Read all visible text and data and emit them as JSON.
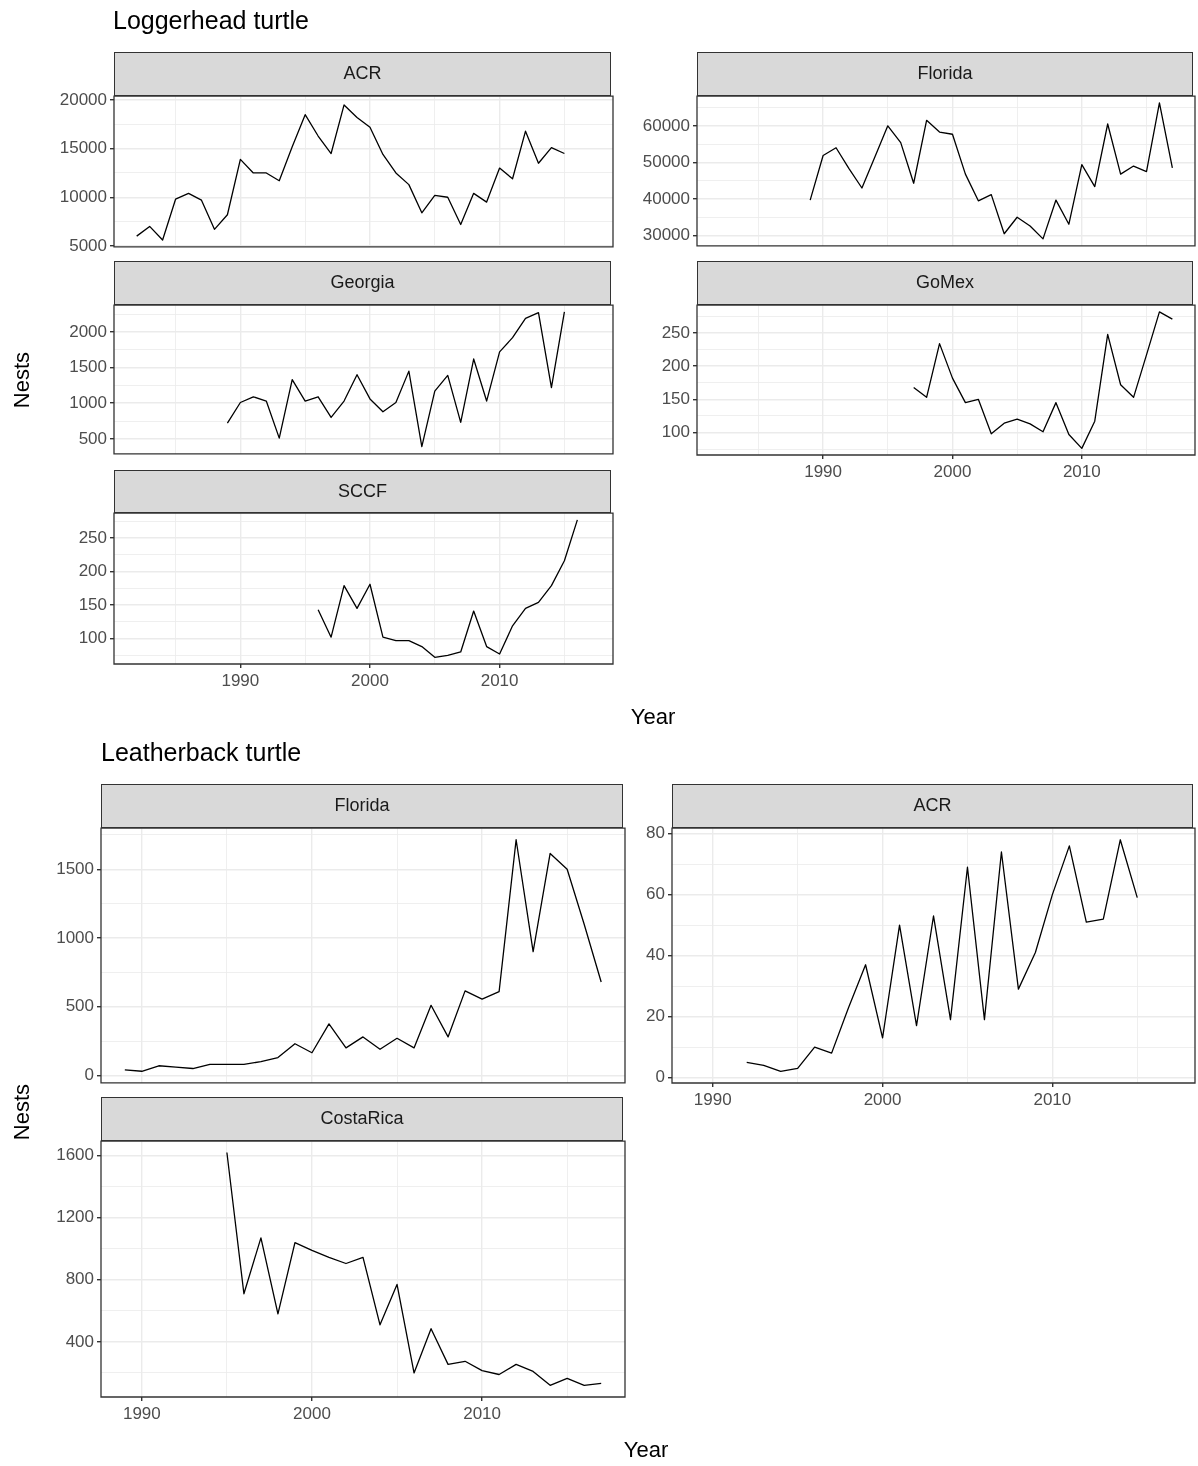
{
  "chart_data": [
    {
      "type": "line",
      "title": "Loggerhead turtle",
      "subtitle": "ACR",
      "color": "#000000",
      "grid": true,
      "tick_labels": "y",
      "x": [
        1982,
        1983,
        1984,
        1985,
        1986,
        1987,
        1988,
        1989,
        1990,
        1991,
        1992,
        1993,
        1994,
        1995,
        1996,
        1997,
        1998,
        1999,
        2000,
        2001,
        2002,
        2003,
        2004,
        2005,
        2006,
        2007,
        2008,
        2009,
        2010,
        2011,
        2012,
        2013,
        2014,
        2015
      ],
      "values": [
        6000,
        7000,
        5600,
        9800,
        10400,
        9700,
        6700,
        8200,
        13900,
        12500,
        12500,
        11700,
        15200,
        18500,
        16300,
        14500,
        19500,
        18200,
        17200,
        14400,
        12500,
        11300,
        8400,
        10200,
        10000,
        7200,
        10400,
        9500,
        13000,
        11900,
        16800,
        13500,
        15100,
        14500
      ],
      "xlim": [
        1980.25,
        2018.75
      ],
      "xticks": [
        {
          "value": 1985,
          "label": null
        },
        1990,
        {
          "value": 1995,
          "label": null
        },
        2000,
        {
          "value": 2005,
          "label": null
        },
        2010,
        {
          "value": 2015,
          "label": null
        }
      ],
      "ylim": [
        4900,
        20400
      ],
      "yticks": [
        5000,
        {
          "value": 7500,
          "label": null
        },
        10000,
        {
          "value": 12500,
          "label": null
        },
        15000,
        {
          "value": 17500,
          "label": null
        },
        20000
      ]
    },
    {
      "type": "line",
      "subtitle": "Florida",
      "color": "#000000",
      "grid": true,
      "tick_labels": "y",
      "x": [
        1989,
        1990,
        1991,
        1992,
        1993,
        1994,
        1995,
        1996,
        1997,
        1998,
        1999,
        2000,
        2001,
        2002,
        2003,
        2004,
        2005,
        2006,
        2007,
        2008,
        2009,
        2010,
        2011,
        2012,
        2013,
        2014,
        2015,
        2016,
        2017
      ],
      "values": [
        39700,
        51900,
        54000,
        48300,
        43000,
        51500,
        60000,
        55400,
        44300,
        61500,
        58300,
        57700,
        46800,
        39500,
        41200,
        30500,
        35000,
        32600,
        29100,
        39700,
        33100,
        49400,
        43400,
        60500,
        46800,
        49000,
        47500,
        66300,
        48500
      ],
      "xlim": [
        1980.25,
        2018.75
      ],
      "xticks": [
        {
          "value": 1985,
          "label": null
        },
        1990,
        {
          "value": 1995,
          "label": null
        },
        2000,
        {
          "value": 2005,
          "label": null
        },
        2010,
        {
          "value": 2015,
          "label": null
        }
      ],
      "ylim": [
        27200,
        68100
      ],
      "yticks": [
        30000,
        {
          "value": 35000,
          "label": null
        },
        40000,
        {
          "value": 45000,
          "label": null
        },
        50000,
        {
          "value": 55000,
          "label": null
        },
        60000,
        {
          "value": 65000,
          "label": null
        }
      ]
    },
    {
      "type": "line",
      "subtitle": "Georgia",
      "ylabel": "Nests",
      "color": "#000000",
      "grid": true,
      "tick_labels": "y",
      "x": [
        1989,
        1990,
        1991,
        1992,
        1993,
        1994,
        1995,
        1996,
        1997,
        1998,
        1999,
        2000,
        2001,
        2002,
        2003,
        2004,
        2005,
        2006,
        2007,
        2008,
        2009,
        2010,
        2011,
        2012,
        2013,
        2014,
        2015
      ],
      "values": [
        720,
        1010,
        1090,
        1030,
        510,
        1330,
        1030,
        1090,
        800,
        1030,
        1400,
        1060,
        880,
        1010,
        1450,
        390,
        1170,
        1390,
        730,
        1620,
        1030,
        1720,
        1920,
        2190,
        2270,
        1220,
        2280
      ],
      "xlim": [
        1980.25,
        2018.75
      ],
      "xticks": [
        {
          "value": 1985,
          "label": null
        },
        1990,
        {
          "value": 1995,
          "label": null
        },
        2000,
        {
          "value": 2005,
          "label": null
        },
        2010,
        {
          "value": 2015,
          "label": null
        }
      ],
      "ylim": [
        290,
        2375
      ],
      "yticks": [
        500,
        {
          "value": 750,
          "label": null
        },
        1000,
        {
          "value": 1250,
          "label": null
        },
        1500,
        {
          "value": 1750,
          "label": null
        },
        2000,
        {
          "value": 2250,
          "label": null
        }
      ]
    },
    {
      "type": "line",
      "subtitle": "GoMex",
      "color": "#000000",
      "grid": true,
      "x": [
        1997,
        1998,
        1999,
        2000,
        2001,
        2002,
        2003,
        2004,
        2005,
        2006,
        2007,
        2008,
        2009,
        2010,
        2011,
        2012,
        2013,
        2014,
        2015,
        2016,
        2017
      ],
      "values": [
        168,
        153,
        234,
        182,
        145,
        150,
        98,
        114,
        120,
        113,
        101,
        145,
        97,
        76,
        117,
        248,
        172,
        153,
        217,
        282,
        271
      ],
      "xlim": [
        1980.25,
        2018.75
      ],
      "xticks": [
        {
          "value": 1985,
          "label": null
        },
        1990,
        {
          "value": 1995,
          "label": null
        },
        2000,
        {
          "value": 2005,
          "label": null
        },
        2010,
        {
          "value": 2015,
          "label": null
        }
      ],
      "ylim": [
        66,
        292
      ],
      "yticks": [
        {
          "value": 75,
          "label": null
        },
        100,
        {
          "value": 125,
          "label": null
        },
        150,
        {
          "value": 175,
          "label": null
        },
        200,
        {
          "value": 225,
          "label": null
        },
        250,
        {
          "value": 275,
          "label": null
        }
      ]
    },
    {
      "type": "line",
      "subtitle": "SCCF",
      "xlabel": "Year",
      "color": "#000000",
      "grid": true,
      "x": [
        1996,
        1997,
        1998,
        1999,
        2000,
        2001,
        2002,
        2003,
        2004,
        2005,
        2006,
        2007,
        2008,
        2009,
        2010,
        2011,
        2012,
        2013,
        2014,
        2015,
        2016
      ],
      "values": [
        143,
        102,
        179,
        145,
        181,
        102,
        97,
        97,
        88,
        72,
        75,
        80,
        141,
        88,
        77,
        119,
        145,
        154,
        179,
        216,
        277
      ],
      "xlim": [
        1980.25,
        2018.75
      ],
      "xticks": [
        {
          "value": 1985,
          "label": null
        },
        1990,
        {
          "value": 1995,
          "label": null
        },
        2000,
        {
          "value": 2005,
          "label": null
        },
        2010,
        {
          "value": 2015,
          "label": null
        }
      ],
      "ylim": [
        62,
        287
      ],
      "yticks": [
        {
          "value": 75,
          "label": null
        },
        100,
        {
          "value": 125,
          "label": null
        },
        150,
        {
          "value": 175,
          "label": null
        },
        200,
        {
          "value": 225,
          "label": null
        },
        250,
        {
          "value": 275,
          "label": null
        }
      ]
    },
    {
      "type": "line",
      "title": "Leatherback turtle",
      "subtitle": "Florida",
      "color": "#000000",
      "grid": true,
      "tick_labels": "y",
      "x": [
        1989,
        1990,
        1991,
        1992,
        1993,
        1994,
        1995,
        1996,
        1997,
        1998,
        1999,
        2000,
        2001,
        2002,
        2003,
        2004,
        2005,
        2006,
        2007,
        2008,
        2009,
        2010,
        2011,
        2012,
        2013,
        2014,
        2015,
        2016,
        2017
      ],
      "values": [
        40,
        30,
        70,
        60,
        50,
        80,
        80,
        80,
        100,
        130,
        230,
        165,
        375,
        200,
        280,
        190,
        270,
        200,
        510,
        280,
        615,
        555,
        610,
        1715,
        900,
        1615,
        1500,
        1100,
        680
      ],
      "xlim": [
        1987.6,
        2018.4
      ],
      "xticks": [
        1990,
        {
          "value": 1995,
          "label": null
        },
        2000,
        {
          "value": 2005,
          "label": null
        },
        2010,
        {
          "value": 2015,
          "label": null
        }
      ],
      "ylim": [
        -54,
        1799
      ],
      "yticks": [
        0,
        {
          "value": 250,
          "label": null
        },
        500,
        {
          "value": 750,
          "label": null
        },
        1000,
        {
          "value": 1250,
          "label": null
        },
        1500,
        {
          "value": 1750,
          "label": null
        }
      ]
    },
    {
      "type": "line",
      "subtitle": "ACR",
      "color": "#000000",
      "grid": true,
      "x": [
        1992,
        1993,
        1994,
        1995,
        1996,
        1997,
        1998,
        1999,
        2000,
        2001,
        2002,
        2003,
        2004,
        2005,
        2006,
        2007,
        2008,
        2009,
        2010,
        2011,
        2012,
        2013,
        2014,
        2015
      ],
      "values": [
        5,
        4,
        2,
        3,
        10,
        8,
        23,
        37,
        13,
        50,
        17,
        53,
        19,
        69,
        19,
        74,
        29,
        41,
        60,
        76,
        51,
        52,
        78,
        59
      ],
      "xlim": [
        1987.6,
        2018.4
      ],
      "xticks": [
        1990,
        {
          "value": 1995,
          "label": null
        },
        2000,
        {
          "value": 2005,
          "label": null
        },
        2010,
        {
          "value": 2015,
          "label": null
        }
      ],
      "ylim": [
        -1.8,
        81.8
      ],
      "yticks": [
        0,
        {
          "value": 10,
          "label": null
        },
        20,
        {
          "value": 30,
          "label": null
        },
        40,
        {
          "value": 50,
          "label": null
        },
        60,
        {
          "value": 70,
          "label": null
        },
        80
      ]
    },
    {
      "type": "line",
      "subtitle": "CostaRica",
      "ylabel": "Nests",
      "xlabel": "Year",
      "color": "#000000",
      "grid": true,
      "x": [
        1995,
        1996,
        1997,
        1998,
        1999,
        2000,
        2001,
        2002,
        2003,
        2004,
        2005,
        2006,
        2007,
        2008,
        2009,
        2010,
        2011,
        2012,
        2013,
        2014,
        2015,
        2016,
        2017
      ],
      "values": [
        1620,
        710,
        1070,
        580,
        1040,
        990,
        945,
        905,
        945,
        510,
        770,
        200,
        485,
        255,
        275,
        215,
        190,
        255,
        210,
        120,
        165,
        120,
        133
      ],
      "xlim": [
        1987.6,
        2018.4
      ],
      "xticks": [
        1990,
        {
          "value": 1995,
          "label": null
        },
        2000,
        {
          "value": 2005,
          "label": null
        },
        2010,
        {
          "value": 2015,
          "label": null
        }
      ],
      "ylim": [
        45,
        1693
      ],
      "yticks": [
        {
          "value": 200,
          "label": null
        },
        400,
        {
          "value": 600,
          "label": null
        },
        800,
        {
          "value": 1000,
          "label": null
        },
        1200,
        {
          "value": 1400,
          "label": null
        },
        1600
      ]
    }
  ]
}
